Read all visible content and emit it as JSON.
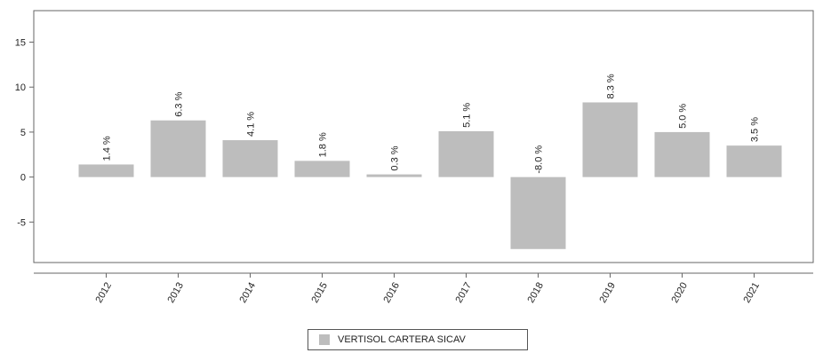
{
  "chart_data": {
    "type": "bar",
    "title": "",
    "xlabel": "",
    "ylabel": "",
    "categories": [
      "2012",
      "2013",
      "2014",
      "2015",
      "2016",
      "2017",
      "2018",
      "2019",
      "2020",
      "2021"
    ],
    "series": [
      {
        "name": "VERTISOL CARTERA SICAV",
        "values": [
          1.4,
          6.3,
          4.1,
          1.8,
          0.3,
          5.1,
          -8.0,
          8.3,
          5.0,
          3.5
        ],
        "color": "#bdbdbd"
      }
    ],
    "data_labels": [
      "1.4 %",
      "6.3 %",
      "4.1 %",
      "1.8 %",
      "0.3 %",
      "5.1 %",
      "-8.0 %",
      "8.3 %",
      "5.0 %",
      "3.5 %"
    ],
    "yticks": [
      -5,
      0,
      5,
      10,
      15
    ],
    "ylim": [
      -9.5,
      18.5
    ],
    "grid": false,
    "legend_position": "bottom-center"
  }
}
